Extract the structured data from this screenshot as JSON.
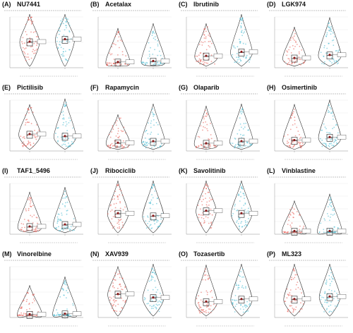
{
  "colors": {
    "low": "#e8574f",
    "high": "#3fb8cf",
    "mean_dot": "#8b1a1a",
    "violin_edge": "#333333",
    "bg": "#ffffff"
  },
  "chart_data": [
    {
      "type": "violin",
      "panel": "(A)",
      "title": "NU7441",
      "groups": [
        {
          "median": 0.5
        },
        {
          "median": 0.55
        }
      ]
    },
    {
      "type": "violin",
      "panel": "(B)",
      "title": "Acetalax",
      "groups": [
        {
          "median": 0.1
        },
        {
          "median": 0.12
        }
      ]
    },
    {
      "type": "violin",
      "panel": "(C)",
      "title": "Ibrutinib",
      "groups": [
        {
          "median": 0.22
        },
        {
          "median": 0.3
        }
      ]
    },
    {
      "type": "violin",
      "panel": "(D)",
      "title": "LGK974",
      "groups": [
        {
          "median": 0.18
        },
        {
          "median": 0.24
        }
      ]
    },
    {
      "type": "violin",
      "panel": "(E)",
      "title": "Pictilisib",
      "groups": [
        {
          "median": 0.32
        },
        {
          "median": 0.28
        }
      ]
    },
    {
      "type": "violin",
      "panel": "(F)",
      "title": "Rapamycin",
      "groups": [
        {
          "median": 0.15
        },
        {
          "median": 0.18
        }
      ]
    },
    {
      "type": "violin",
      "panel": "(G)",
      "title": "Olaparib",
      "groups": [
        {
          "median": 0.14
        },
        {
          "median": 0.18
        }
      ]
    },
    {
      "type": "violin",
      "panel": "(H)",
      "title": "Osimertinib",
      "groups": [
        {
          "median": 0.2
        },
        {
          "median": 0.26
        }
      ]
    },
    {
      "type": "violin",
      "panel": "(I)",
      "title": "TAF1_5496",
      "groups": [
        {
          "median": 0.14
        },
        {
          "median": 0.18
        }
      ]
    },
    {
      "type": "violin",
      "panel": "(J)",
      "title": "Ribociclib",
      "groups": [
        {
          "median": 0.4
        },
        {
          "median": 0.35
        }
      ]
    },
    {
      "type": "violin",
      "panel": "(K)",
      "title": "Savolitinib",
      "groups": [
        {
          "median": 0.45
        },
        {
          "median": 0.4
        }
      ]
    },
    {
      "type": "violin",
      "panel": "(L)",
      "title": "Vinblastine",
      "groups": [
        {
          "median": 0.05
        },
        {
          "median": 0.05
        }
      ]
    },
    {
      "type": "violin",
      "panel": "(M)",
      "title": "Vinorelbine",
      "groups": [
        {
          "median": 0.05
        },
        {
          "median": 0.06
        }
      ]
    },
    {
      "type": "violin",
      "panel": "(N)",
      "title": "XAV939",
      "groups": [
        {
          "median": 0.45
        },
        {
          "median": 0.38
        }
      ]
    },
    {
      "type": "violin",
      "panel": "(O)",
      "title": "Tozasertib",
      "groups": [
        {
          "median": 0.3
        },
        {
          "median": 0.35
        }
      ]
    },
    {
      "type": "violin",
      "panel": "(P)",
      "title": "ML323",
      "groups": [
        {
          "median": 0.35
        },
        {
          "median": 0.4
        }
      ]
    }
  ]
}
